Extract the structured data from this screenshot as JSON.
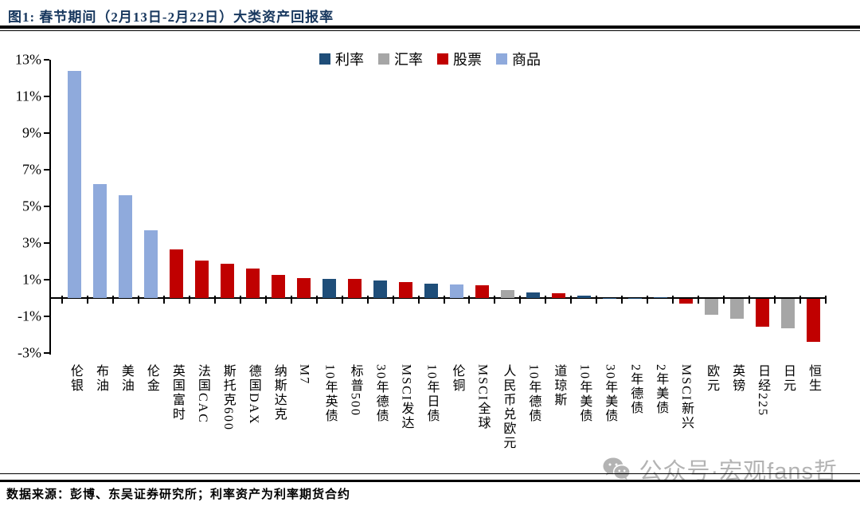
{
  "header": {
    "title": "图1: 春节期间（2月13日-2月22日）大类资产回报率"
  },
  "legend": {
    "items": [
      {
        "label": "利率",
        "color": "#1F4E79"
      },
      {
        "label": "汇率",
        "color": "#A6A6A6"
      },
      {
        "label": "股票",
        "color": "#C00000"
      },
      {
        "label": "商品",
        "color": "#8FAADC"
      }
    ]
  },
  "chart_data": {
    "type": "bar",
    "title": "春节期间（2月13日-2月22日）大类资产回报率",
    "xlabel": "",
    "ylabel": "",
    "ylim": [
      -3,
      13
    ],
    "grid": false,
    "legend_position": "top-center",
    "yticks": [
      {
        "v": 13,
        "label": "13%"
      },
      {
        "v": 11,
        "label": "11%"
      },
      {
        "v": 9,
        "label": "9%"
      },
      {
        "v": 7,
        "label": "7%"
      },
      {
        "v": 5,
        "label": "5%"
      },
      {
        "v": 3,
        "label": "3%"
      },
      {
        "v": 1,
        "label": "1%"
      },
      {
        "v": -1,
        "label": "-1%"
      },
      {
        "v": -3,
        "label": "-3%"
      }
    ],
    "categories": [
      "伦银",
      "布油",
      "美油",
      "伦金",
      "英国富时",
      "法国CAC",
      "斯托克600",
      "德国DAX",
      "纳斯达克",
      "M7",
      "10年英债",
      "标普500",
      "30年德债",
      "MSCI发达",
      "10年日债",
      "伦铜",
      "MSCI全球",
      "人民币兑欧元",
      "10年德债",
      "道琼斯",
      "10年美债",
      "30年美债",
      "2年德债",
      "2年美债",
      "MSCI新兴",
      "欧元",
      "英镑",
      "日经225",
      "日元",
      "恒生"
    ],
    "values": [
      12.4,
      6.2,
      5.6,
      3.7,
      2.65,
      2.05,
      1.85,
      1.6,
      1.25,
      1.1,
      1.05,
      1.05,
      0.95,
      0.85,
      0.8,
      0.75,
      0.7,
      0.45,
      0.3,
      0.25,
      0.12,
      0.02,
      0.02,
      0.03,
      -0.25,
      -0.85,
      -1.1,
      -1.5,
      -1.6,
      -2.35
    ],
    "groups": [
      "商品",
      "商品",
      "商品",
      "商品",
      "股票",
      "股票",
      "股票",
      "股票",
      "股票",
      "股票",
      "利率",
      "股票",
      "利率",
      "股票",
      "利率",
      "商品",
      "股票",
      "汇率",
      "利率",
      "股票",
      "利率",
      "利率",
      "利率",
      "利率",
      "股票",
      "汇率",
      "汇率",
      "股票",
      "汇率",
      "股票"
    ],
    "group_colors": {
      "利率": "#1F4E79",
      "汇率": "#A6A6A6",
      "股票": "#C00000",
      "商品": "#8FAADC"
    },
    "legend_entries": [
      "利率",
      "汇率",
      "股票",
      "商品"
    ]
  },
  "watermark": {
    "text": "公众号·宏观fans哲",
    "icon": "wechat-icon",
    "color": "#b3b3b3"
  },
  "footer": {
    "source": "数据来源：彭博、东吴证券研究所；利率资产为利率期货合约"
  }
}
